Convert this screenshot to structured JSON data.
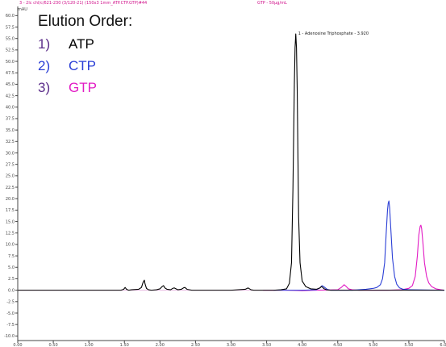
{
  "header": {
    "left_text": "3 - 2lc chl/c/621-230 (3/120-21) (150x3 1mm_ATP.CTP.GTP)#44",
    "right_text": "GTP - 50µg/mL"
  },
  "legend": {
    "title": "Elution Order:",
    "items": [
      {
        "num": "1)",
        "label": "ATP",
        "color": "#000000",
        "num_color": "#5b2d8a"
      },
      {
        "num": "2)",
        "label": "CTP",
        "color": "#2b3fd6",
        "num_color": "#2b3fd6"
      },
      {
        "num": "3)",
        "label": "GTP",
        "color": "#e21bc4",
        "num_color": "#5b2d8a"
      }
    ]
  },
  "chart_data": {
    "type": "line",
    "ylabel": "mAU",
    "xlim": [
      0.0,
      6.0
    ],
    "ylim": [
      -11.0,
      62.0
    ],
    "x_ticks": [
      "0.00",
      "0.50",
      "1.00",
      "1.50",
      "2.00",
      "2.50",
      "3.00",
      "3.50",
      "4.00",
      "4.50",
      "5.00",
      "5.50",
      "6.00"
    ],
    "y_ticks": [
      "-10.0",
      "-7.5",
      "-5.0",
      "-2.5",
      "0.0",
      "2.5",
      "5.0",
      "7.5",
      "10.0",
      "12.5",
      "15.0",
      "17.5",
      "20.0",
      "22.5",
      "25.0",
      "27.5",
      "30.0",
      "32.5",
      "35.0",
      "37.5",
      "40.0",
      "42.5",
      "45.0",
      "47.5",
      "50.0",
      "52.5",
      "55.0",
      "57.5",
      "60.0"
    ],
    "peak_annotation": "1 - Adenosine Triphosphate - 3.920",
    "series": [
      {
        "name": "ATP",
        "color": "#000000",
        "x": [
          0.0,
          1.45,
          1.49,
          1.51,
          1.53,
          1.56,
          1.6,
          1.7,
          1.74,
          1.76,
          1.78,
          1.79,
          1.81,
          1.84,
          1.88,
          1.95,
          2.0,
          2.03,
          2.05,
          2.07,
          2.1,
          2.15,
          2.18,
          2.2,
          2.25,
          2.3,
          2.33,
          2.35,
          2.38,
          2.45,
          2.6,
          2.8,
          3.0,
          3.2,
          3.24,
          3.26,
          3.28,
          3.32,
          3.4,
          3.6,
          3.7,
          3.78,
          3.82,
          3.85,
          3.87,
          3.89,
          3.9,
          3.91,
          3.92,
          3.93,
          3.94,
          3.95,
          3.97,
          4.0,
          4.05,
          4.12,
          4.2,
          4.25,
          4.27,
          4.29,
          4.31,
          4.34,
          4.4,
          4.5,
          5.0,
          5.5,
          6.0
        ],
        "y": [
          0.0,
          0.0,
          0.2,
          0.6,
          0.2,
          0.0,
          0.1,
          0.2,
          0.6,
          1.6,
          2.2,
          1.4,
          0.4,
          0.1,
          0.0,
          0.1,
          0.3,
          0.8,
          1.0,
          0.5,
          0.2,
          0.1,
          0.4,
          0.5,
          0.1,
          0.2,
          0.5,
          0.6,
          0.2,
          0.0,
          0.0,
          0.0,
          0.0,
          0.2,
          0.5,
          0.3,
          0.1,
          0.0,
          0.0,
          0.0,
          0.1,
          0.3,
          1.5,
          6.0,
          22.0,
          45.0,
          53.0,
          56.0,
          53.0,
          44.0,
          30.0,
          16.0,
          6.0,
          2.0,
          0.8,
          0.3,
          0.2,
          0.5,
          0.8,
          0.6,
          0.3,
          0.1,
          0.0,
          0.0,
          0.0,
          0.0,
          0.0
        ]
      },
      {
        "name": "CTP",
        "color": "#2b3fd6",
        "x": [
          3.6,
          4.0,
          4.2,
          4.25,
          4.28,
          4.31,
          4.35,
          4.4,
          4.5,
          4.6,
          4.7,
          4.8,
          4.9,
          5.0,
          5.05,
          5.1,
          5.13,
          5.16,
          5.18,
          5.2,
          5.21,
          5.22,
          5.23,
          5.25,
          5.27,
          5.3,
          5.33,
          5.37,
          5.42,
          5.5,
          6.0
        ],
        "y": [
          0.0,
          0.0,
          0.1,
          0.5,
          1.0,
          0.7,
          0.2,
          0.0,
          0.0,
          0.0,
          0.0,
          0.1,
          0.2,
          0.4,
          0.6,
          1.2,
          2.5,
          6.0,
          12.0,
          17.5,
          19.0,
          19.5,
          18.0,
          12.5,
          7.0,
          3.0,
          1.3,
          0.5,
          0.2,
          0.1,
          0.0
        ]
      },
      {
        "name": "GTP",
        "color": "#e21bc4",
        "x": [
          3.45,
          3.6,
          3.8,
          4.0,
          4.2,
          4.5,
          4.55,
          4.59,
          4.62,
          4.65,
          4.7,
          4.8,
          5.0,
          5.2,
          5.4,
          5.5,
          5.55,
          5.59,
          5.62,
          5.64,
          5.66,
          5.67,
          5.68,
          5.7,
          5.72,
          5.75,
          5.78,
          5.82,
          5.88,
          5.95,
          6.0
        ],
        "y": [
          0.0,
          0.0,
          0.0,
          -0.1,
          0.0,
          0.1,
          0.6,
          1.2,
          0.8,
          0.3,
          0.1,
          0.0,
          0.0,
          0.0,
          0.1,
          0.4,
          1.0,
          3.0,
          7.5,
          12.0,
          14.0,
          14.2,
          13.5,
          10.0,
          6.0,
          3.0,
          1.6,
          0.8,
          0.3,
          0.1,
          0.0
        ]
      }
    ]
  }
}
